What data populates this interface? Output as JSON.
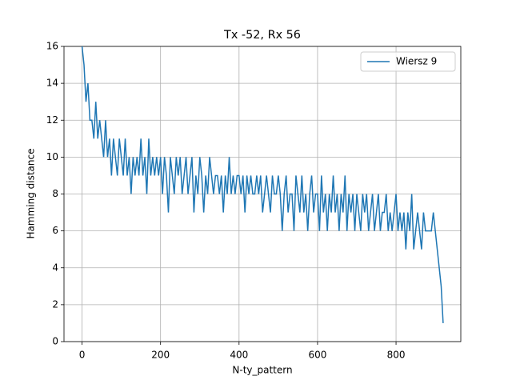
{
  "chart_data": {
    "type": "line",
    "title": "Tx -52, Rx 56",
    "x_label": "N-ty_pattern",
    "y_label": "Hamming distance",
    "x": [
      0,
      5,
      10,
      15,
      20,
      25,
      30,
      35,
      40,
      45,
      50,
      55,
      60,
      65,
      70,
      75,
      80,
      85,
      90,
      95,
      100,
      105,
      110,
      115,
      120,
      125,
      130,
      135,
      140,
      145,
      150,
      155,
      160,
      165,
      170,
      175,
      180,
      185,
      190,
      195,
      200,
      205,
      210,
      215,
      220,
      225,
      230,
      235,
      240,
      245,
      250,
      255,
      260,
      265,
      270,
      275,
      280,
      285,
      290,
      295,
      300,
      305,
      310,
      315,
      320,
      325,
      330,
      335,
      340,
      345,
      350,
      355,
      360,
      365,
      370,
      375,
      380,
      385,
      390,
      395,
      400,
      405,
      410,
      415,
      420,
      425,
      430,
      435,
      440,
      445,
      450,
      455,
      460,
      465,
      470,
      475,
      480,
      485,
      490,
      495,
      500,
      505,
      510,
      515,
      520,
      525,
      530,
      535,
      540,
      545,
      550,
      555,
      560,
      565,
      570,
      575,
      580,
      585,
      590,
      595,
      600,
      605,
      610,
      615,
      620,
      625,
      630,
      635,
      640,
      645,
      650,
      655,
      660,
      665,
      670,
      675,
      680,
      685,
      690,
      695,
      700,
      705,
      710,
      715,
      720,
      725,
      730,
      735,
      740,
      745,
      750,
      755,
      760,
      765,
      770,
      775,
      780,
      785,
      790,
      795,
      800,
      805,
      810,
      815,
      820,
      825,
      830,
      835,
      840,
      845,
      850,
      855,
      860,
      865,
      870,
      875,
      880,
      885,
      890,
      895,
      900,
      905,
      910,
      915,
      920
    ],
    "series": [
      {
        "name": "Wiersz 9",
        "color": "#1f77b4",
        "values": [
          16,
          15,
          13,
          14,
          12,
          12,
          11,
          13,
          11,
          12,
          11,
          10,
          12,
          10,
          11,
          9,
          11,
          10,
          9,
          11,
          10,
          9,
          11,
          9,
          10,
          8,
          10,
          9,
          10,
          9,
          11,
          9,
          10,
          8,
          11,
          9,
          10,
          9,
          10,
          9,
          10,
          8,
          10,
          9,
          7,
          10,
          9,
          8,
          10,
          9,
          10,
          8,
          9,
          10,
          8,
          9,
          10,
          7,
          9,
          8,
          10,
          9,
          7,
          9,
          8,
          10,
          9,
          8,
          9,
          9,
          8,
          9,
          7,
          9,
          8,
          10,
          8,
          9,
          8,
          9,
          9,
          8,
          9,
          7,
          9,
          8,
          9,
          8,
          8,
          9,
          8,
          9,
          7,
          8,
          9,
          8,
          7,
          9,
          8,
          8,
          9,
          8,
          6,
          8,
          9,
          7,
          8,
          8,
          6,
          9,
          8,
          7,
          9,
          7,
          8,
          6,
          8,
          9,
          7,
          8,
          8,
          6,
          9,
          7,
          8,
          6,
          8,
          7,
          9,
          7,
          8,
          6,
          8,
          7,
          9,
          6,
          8,
          7,
          8,
          6,
          8,
          7,
          6,
          8,
          7,
          8,
          6,
          7,
          8,
          6,
          7,
          8,
          6,
          7,
          7,
          8,
          6,
          7,
          6,
          7,
          8,
          6,
          7,
          6,
          7,
          5,
          7,
          6,
          8,
          5,
          6,
          7,
          6,
          5,
          7,
          6,
          6,
          6,
          6,
          7,
          6,
          5,
          4,
          3,
          1
        ]
      }
    ],
    "xlim": [
      -46,
      965
    ],
    "ylim": [
      0,
      16
    ],
    "xticks": [
      0,
      200,
      400,
      600,
      800
    ],
    "yticks": [
      0,
      2,
      4,
      6,
      8,
      10,
      12,
      14,
      16
    ],
    "grid": true,
    "legend": "upper right"
  }
}
